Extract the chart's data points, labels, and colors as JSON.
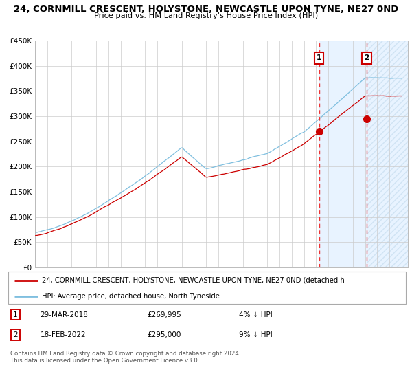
{
  "title": "24, CORNMILL CRESCENT, HOLYSTONE, NEWCASTLE UPON TYNE, NE27 0ND",
  "subtitle": "Price paid vs. HM Land Registry's House Price Index (HPI)",
  "legend_line1": "24, CORNMILL CRESCENT, HOLYSTONE, NEWCASTLE UPON TYNE, NE27 0ND (detached h",
  "legend_line2": "HPI: Average price, detached house, North Tyneside",
  "annotation1_date": "29-MAR-2018",
  "annotation1_price": "£269,995",
  "annotation1_pct": "4% ↓ HPI",
  "annotation2_date": "18-FEB-2022",
  "annotation2_price": "£295,000",
  "annotation2_pct": "9% ↓ HPI",
  "footer": "Contains HM Land Registry data © Crown copyright and database right 2024.\nThis data is licensed under the Open Government Licence v3.0.",
  "hpi_color": "#7fbfdf",
  "price_color": "#cc0000",
  "vline_color": "#ee3333",
  "shade_color": "#ddeeff",
  "annotation_box_color": "#cc0000",
  "ylim": [
    0,
    450000
  ],
  "yticks": [
    0,
    50000,
    100000,
    150000,
    200000,
    250000,
    300000,
    350000,
    400000,
    450000
  ],
  "start_year": 1995,
  "end_year": 2025,
  "sale1_year": 2018.24,
  "sale2_year": 2022.13,
  "sale1_price": 269995,
  "sale2_price": 295000
}
